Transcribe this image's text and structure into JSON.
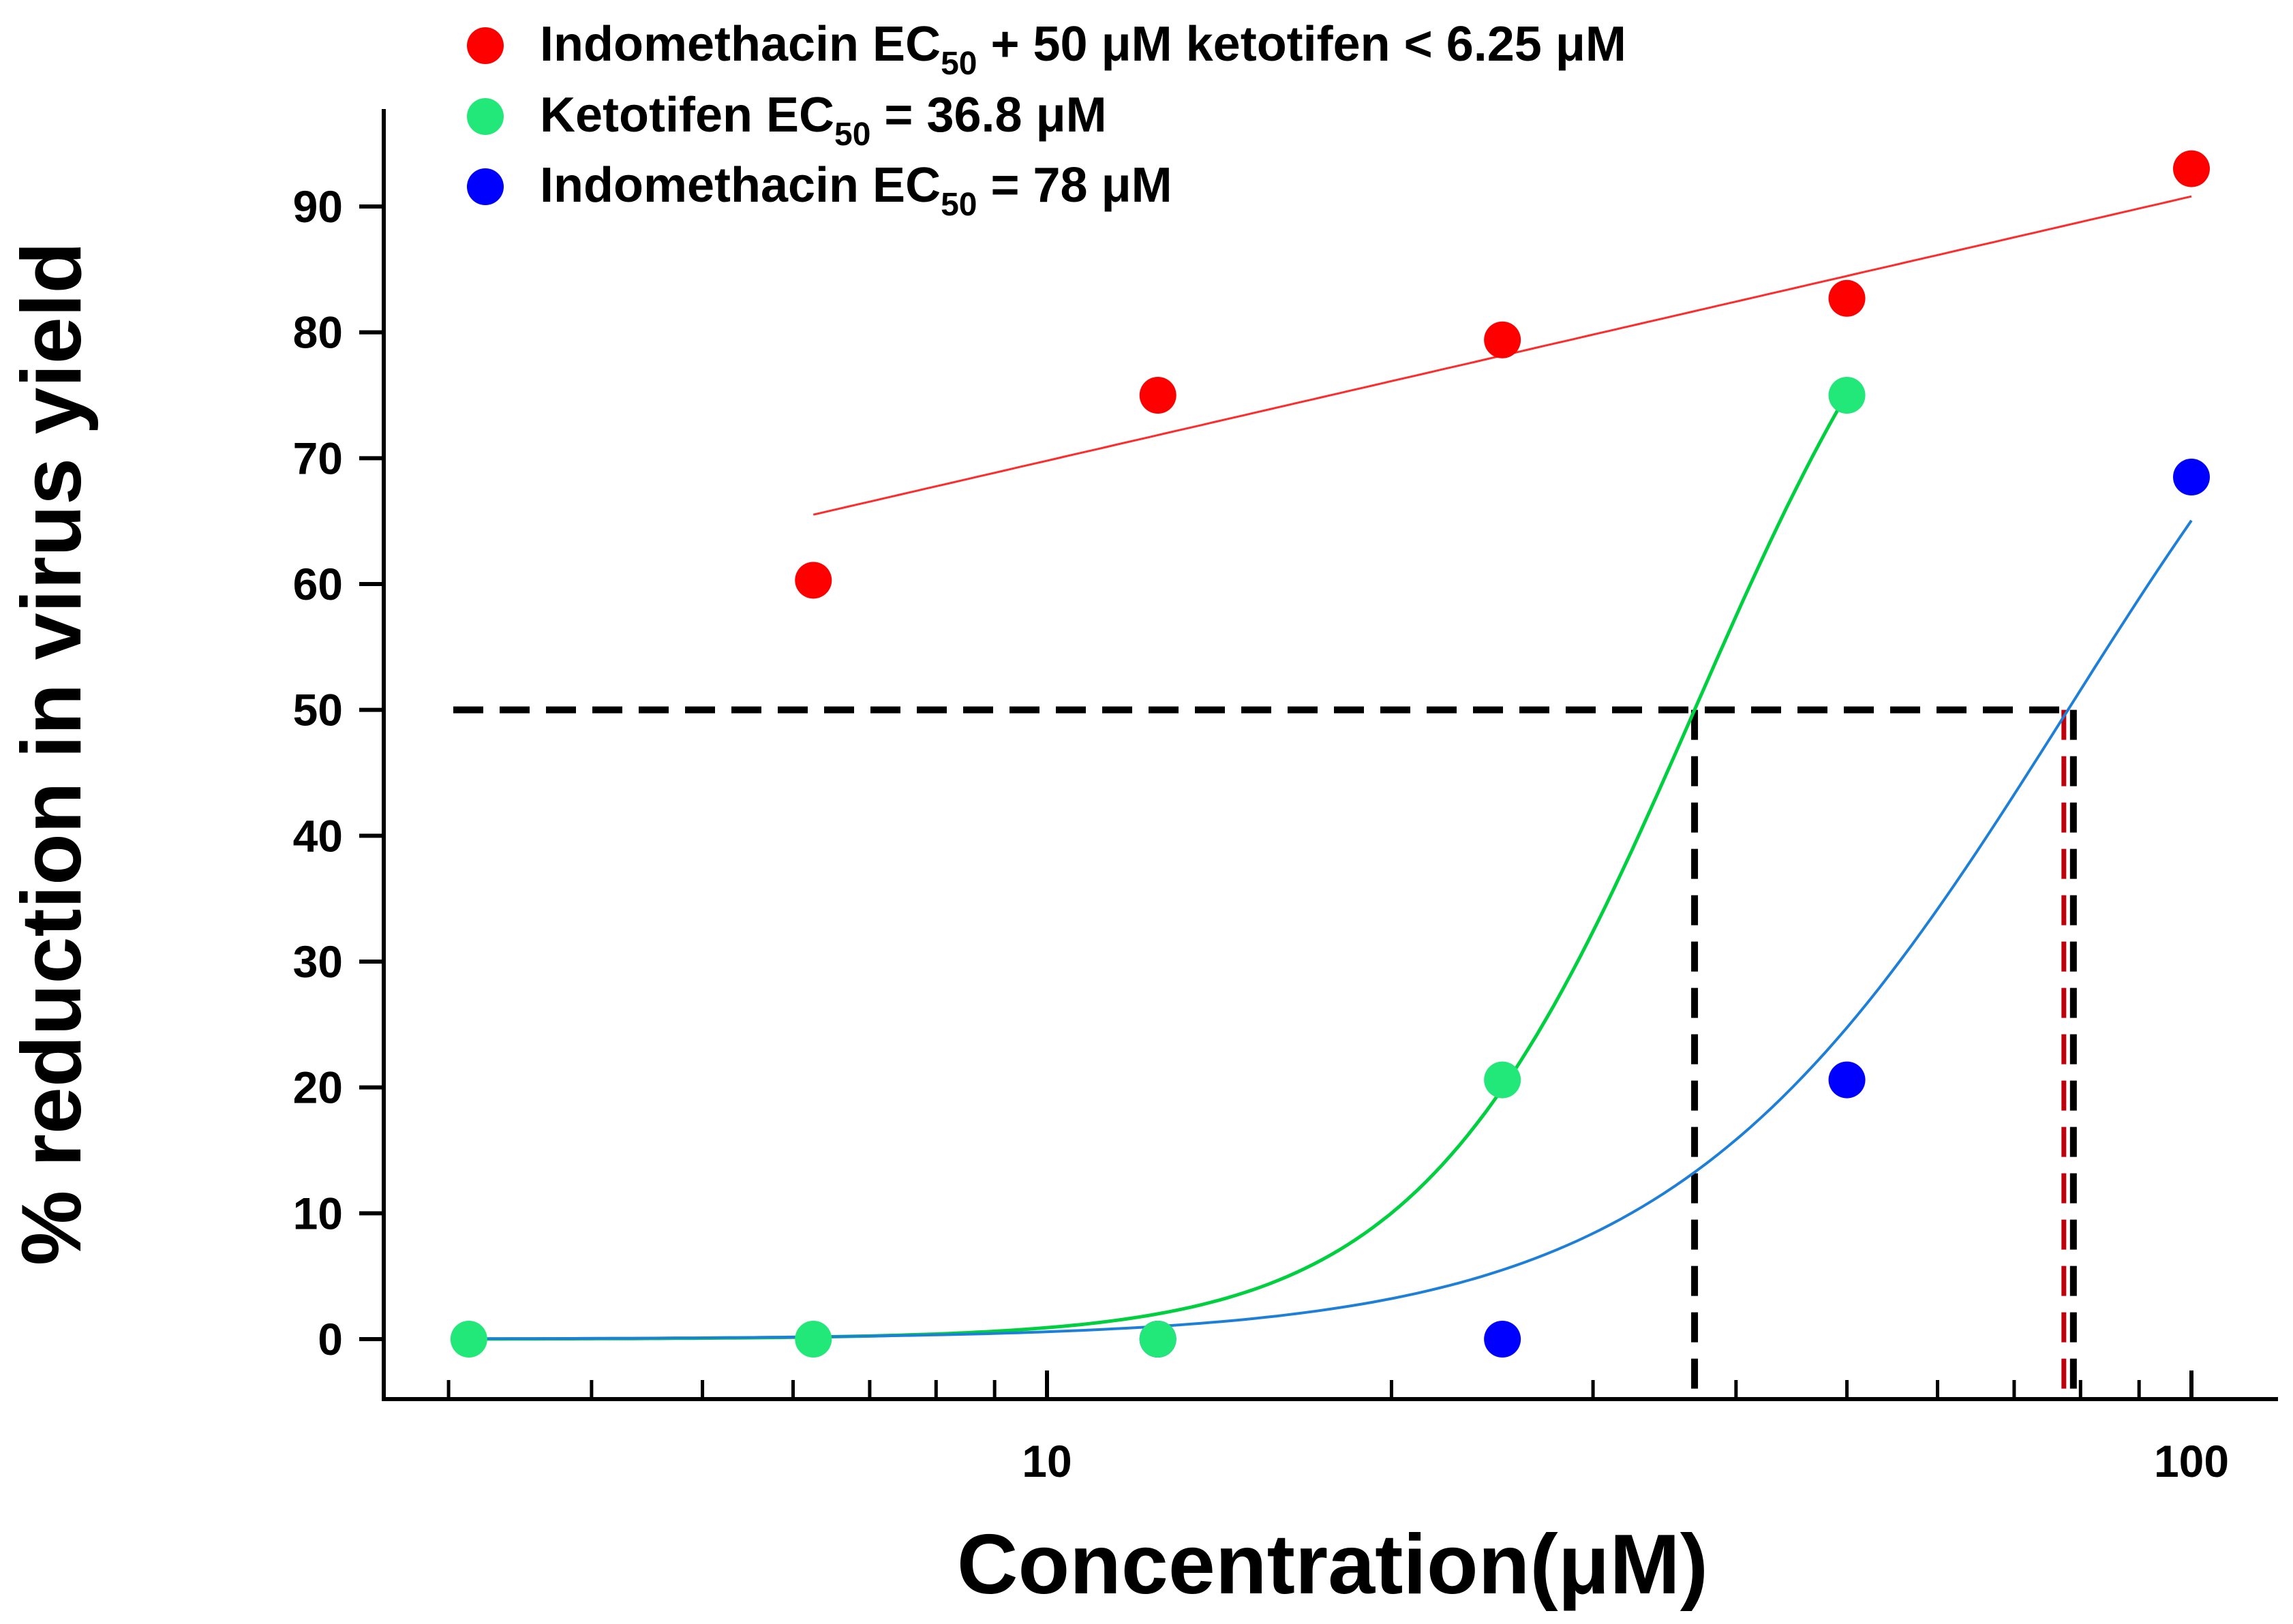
{
  "chart_data": {
    "type": "scatter",
    "x_scale": "log",
    "xlabel": "Concentration(μM)",
    "ylabel": "% reduction in virus yield",
    "xlim": [
      2.8,
      120
    ],
    "ylim": [
      -4.5,
      98
    ],
    "xticks_labeled": [
      10,
      100
    ],
    "yticks": [
      0,
      10,
      20,
      30,
      40,
      50,
      60,
      70,
      80,
      90
    ],
    "grid": false,
    "legend_position": "top-left",
    "series": [
      {
        "name_parts": [
          "Indomethacin EC",
          "50",
          " + 50 μM ketotifen < 6.25 μM"
        ],
        "color": "#ff0000",
        "line_color": "#ff2a2a",
        "x": [
          6.25,
          12.5,
          25,
          50,
          100
        ],
        "y": [
          60.3,
          75,
          79.4,
          82.7,
          93
        ]
      },
      {
        "name_parts": [
          "Ketotifen EC",
          "50",
          " = 36.8 μM"
        ],
        "color": "#22e879",
        "line_color": "#00d040",
        "x": [
          3.125,
          6.25,
          12.5,
          25,
          50
        ],
        "y": [
          0,
          0,
          0,
          20.6,
          75
        ]
      },
      {
        "name_parts": [
          "Indomethacin EC",
          "50",
          " = 78 μM"
        ],
        "color": "#0000ff",
        "line_color": "#1e7fd8",
        "x": [
          12.5,
          25,
          50,
          100
        ],
        "y": [
          0,
          0,
          20.6,
          68.5
        ]
      }
    ],
    "reference_lines": {
      "y": 50,
      "x": [
        36.8,
        78
      ],
      "color": "#000000",
      "accent_color": "#c0000a"
    }
  }
}
